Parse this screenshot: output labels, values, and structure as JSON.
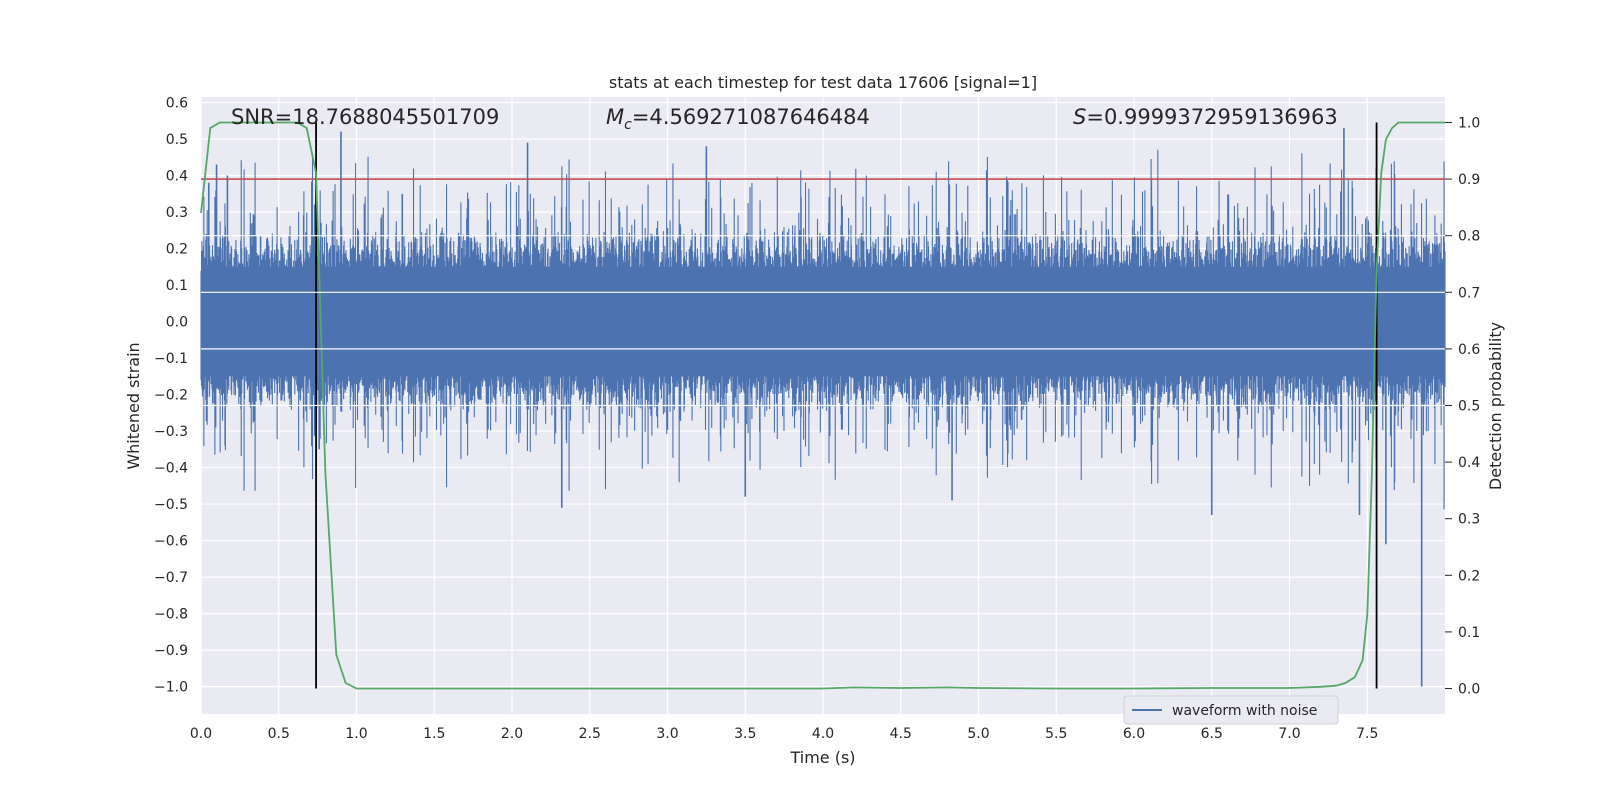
{
  "chart_data": {
    "type": "line",
    "title": "stats at each timestep for test data 17606 [signal=1]",
    "xlabel": "Time (s)",
    "ylabel_left": "Whitened strain",
    "ylabel_right": "Detection probability",
    "xlim": [
      0.0,
      8.0
    ],
    "ylim_left": [
      -1.075,
      0.615
    ],
    "ylim_right": [
      -0.045,
      1.045
    ],
    "grid": true,
    "x_ticks": [
      "0.0",
      "0.5",
      "1.0",
      "1.5",
      "2.0",
      "2.5",
      "3.0",
      "3.5",
      "4.0",
      "4.5",
      "5.0",
      "5.5",
      "6.0",
      "6.5",
      "7.0",
      "7.5"
    ],
    "x_tick_values": [
      0.0,
      0.5,
      1.0,
      1.5,
      2.0,
      2.5,
      3.0,
      3.5,
      4.0,
      4.5,
      5.0,
      5.5,
      6.0,
      6.5,
      7.0,
      7.5
    ],
    "y_left_ticks": [
      "0.6",
      "0.5",
      "0.4",
      "0.3",
      "0.2",
      "0.1",
      "0.0",
      "−0.1",
      "−0.2",
      "−0.3",
      "−0.4",
      "−0.5",
      "−0.6",
      "−0.7",
      "−0.8",
      "−0.9",
      "−1.0"
    ],
    "y_left_tick_values": [
      0.6,
      0.5,
      0.4,
      0.3,
      0.2,
      0.1,
      0.0,
      -0.1,
      -0.2,
      -0.3,
      -0.4,
      -0.5,
      -0.6,
      -0.7,
      -0.8,
      -0.9,
      -1.0
    ],
    "y_right_ticks": [
      "1.0",
      "0.9",
      "0.8",
      "0.7",
      "0.6",
      "0.5",
      "0.4",
      "0.3",
      "0.2",
      "0.1",
      "0.0"
    ],
    "y_right_tick_values": [
      1.0,
      0.9,
      0.8,
      0.7,
      0.6,
      0.5,
      0.4,
      0.3,
      0.2,
      0.1,
      0.0
    ],
    "annotations": {
      "snr": "SNR=18.7688045501709",
      "mc_symbol": "M",
      "mc_subscript": "c",
      "mc_value": "=4.569271087646484",
      "s_symbol": "S",
      "s_value": "=0.9999372959136963"
    },
    "threshold_line": {
      "axis": "right",
      "value": 0.9,
      "color": "#c44e52"
    },
    "vertical_lines": {
      "x": [
        0.74,
        7.56
      ],
      "color": "#000000"
    },
    "series": [
      {
        "name": "waveform with noise",
        "axis": "left",
        "color": "#4c72b0",
        "note": "dense whitened strain noise; core band about ±0.2, spikes to about ±0.5, min about −1.0 near t=7.85",
        "typical_range": [
          -0.22,
          0.22
        ],
        "extreme_points": [
          {
            "x": 0.05,
            "y": 0.38
          },
          {
            "x": 0.1,
            "y": 0.43
          },
          {
            "x": 0.17,
            "y": 0.4
          },
          {
            "x": 0.76,
            "y": -0.35
          },
          {
            "x": 0.9,
            "y": 0.52
          },
          {
            "x": 2.1,
            "y": 0.49
          },
          {
            "x": 2.32,
            "y": -0.51
          },
          {
            "x": 3.25,
            "y": 0.48
          },
          {
            "x": 3.5,
            "y": -0.48
          },
          {
            "x": 4.83,
            "y": -0.49
          },
          {
            "x": 6.5,
            "y": -0.53
          },
          {
            "x": 7.35,
            "y": 0.53
          },
          {
            "x": 7.45,
            "y": -0.53
          },
          {
            "x": 7.62,
            "y": -0.61
          },
          {
            "x": 7.85,
            "y": -1.0
          }
        ]
      },
      {
        "name": "detection probability",
        "axis": "right",
        "color": "#55a868",
        "x": [
          0.0,
          0.06,
          0.12,
          0.3,
          0.5,
          0.62,
          0.68,
          0.74,
          0.8,
          0.87,
          0.93,
          1.0,
          1.5,
          2.0,
          2.5,
          3.0,
          3.5,
          4.0,
          4.2,
          4.5,
          4.8,
          5.0,
          5.5,
          6.0,
          6.5,
          7.0,
          7.2,
          7.3,
          7.36,
          7.42,
          7.47,
          7.5,
          7.53,
          7.56,
          7.59,
          7.62,
          7.66,
          7.7,
          7.8,
          8.0
        ],
        "y": [
          0.84,
          0.99,
          1.0,
          1.0,
          1.0,
          1.0,
          0.99,
          0.91,
          0.38,
          0.06,
          0.01,
          0.0,
          0.0,
          0.0,
          0.0,
          0.0,
          0.0,
          0.0,
          0.002,
          0.001,
          0.002,
          0.001,
          0.0,
          0.0,
          0.001,
          0.001,
          0.003,
          0.005,
          0.01,
          0.02,
          0.05,
          0.13,
          0.38,
          0.74,
          0.91,
          0.97,
          0.99,
          1.0,
          1.0,
          1.0
        ]
      }
    ],
    "legend": {
      "entries": [
        {
          "label": "waveform with noise",
          "color": "#4c72b0"
        }
      ],
      "placement": "lower-right"
    }
  },
  "colors": {
    "axes_background": "#eaeaf2",
    "grid": "#ffffff",
    "waveform": "#4c72b0",
    "probability": "#55a868",
    "threshold": "#c44e52",
    "marker_lines": "#000000"
  }
}
